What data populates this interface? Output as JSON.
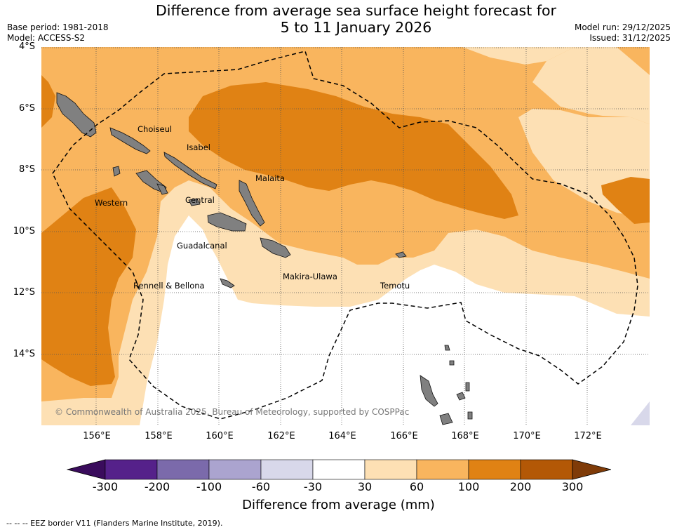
{
  "title": {
    "line1": "Difference from average sea surface height forecast for",
    "line2": "5 to 11 January 2026"
  },
  "meta": {
    "base_period": "Base period: 1981-2018",
    "model": "Model: ACCESS-S2",
    "model_run": "Model run: 29/12/2025",
    "issued": "Issued: 31/12/2025"
  },
  "axes": {
    "lat_labels": [
      "4°S",
      "6°S",
      "8°S",
      "10°S",
      "12°S",
      "14°S"
    ],
    "lon_labels": [
      "156°E",
      "158°E",
      "160°E",
      "162°E",
      "164°E",
      "166°E",
      "168°E",
      "170°E",
      "172°E"
    ]
  },
  "regions": {
    "choiseul": "Choiseul",
    "isabel": "Isabel",
    "malaita": "Malaita",
    "western": "Western",
    "central": "Central",
    "guadalcanal": "Guadalcanal",
    "rennell": "Rennell & Bellona",
    "makira": "Makira-Ulawa",
    "temotu": "Temotu"
  },
  "copyright": "© Commonwealth of Australia 2025, Bureau of Meteorology, supported by COSPPac",
  "colorbar": {
    "title": "Difference from average (mm)",
    "labels": [
      "-300",
      "-200",
      "-100",
      "-60",
      "-30",
      "30",
      "60",
      "100",
      "200",
      "300"
    ],
    "colors": [
      "#3a0c5c",
      "#55218a",
      "#7b6aab",
      "#aba4cf",
      "#d8d8ea",
      "#ffffff",
      "#fde0b4",
      "#f9b55e",
      "#e08214",
      "#b35806",
      "#7f3b08"
    ]
  },
  "legend": {
    "eez": "--  --  -- EEZ border V11 (Flanders Marine Institute, 2019)."
  }
}
